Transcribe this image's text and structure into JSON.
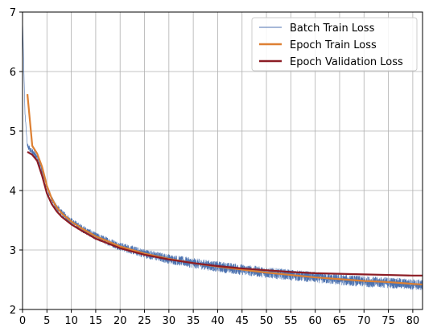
{
  "chart_data": {
    "type": "line",
    "title": "",
    "xlabel": "",
    "ylabel": "",
    "xlim": [
      0,
      82
    ],
    "ylim": [
      2,
      7
    ],
    "x_ticks": [
      0,
      5,
      10,
      15,
      20,
      25,
      30,
      35,
      40,
      45,
      50,
      55,
      60,
      65,
      70,
      75,
      80
    ],
    "y_ticks": [
      2,
      3,
      4,
      5,
      6,
      7
    ],
    "grid": true,
    "legend_position": "top-right",
    "series": [
      {
        "name": "Batch Train Loss",
        "color": "#4c72b0",
        "style": "noisy-thin",
        "x": [
          0,
          0.5,
          1,
          2,
          3,
          4,
          5,
          6,
          7,
          8,
          10,
          12,
          15,
          20,
          25,
          30,
          35,
          40,
          45,
          50,
          55,
          60,
          65,
          70,
          75,
          80,
          82
        ],
        "values": [
          6.9,
          5.3,
          4.75,
          4.65,
          4.55,
          4.35,
          4.05,
          3.85,
          3.72,
          3.62,
          3.48,
          3.37,
          3.23,
          3.06,
          2.94,
          2.85,
          2.78,
          2.72,
          2.67,
          2.62,
          2.58,
          2.54,
          2.5,
          2.47,
          2.45,
          2.42,
          2.41
        ]
      },
      {
        "name": "Epoch Train Loss",
        "color": "#dd8033",
        "style": "solid",
        "x": [
          1,
          2,
          3,
          4,
          5,
          6,
          7,
          8,
          10,
          12,
          15,
          20,
          25,
          30,
          35,
          40,
          45,
          50,
          55,
          60,
          65,
          70,
          75,
          80,
          82
        ],
        "values": [
          5.62,
          4.75,
          4.62,
          4.4,
          4.08,
          3.86,
          3.72,
          3.62,
          3.48,
          3.37,
          3.23,
          3.06,
          2.94,
          2.85,
          2.78,
          2.72,
          2.67,
          2.62,
          2.58,
          2.54,
          2.51,
          2.48,
          2.46,
          2.43,
          2.42
        ]
      },
      {
        "name": "Epoch Validation Loss",
        "color": "#8c1c24",
        "style": "solid",
        "x": [
          1,
          2,
          3,
          4,
          5,
          6,
          7,
          8,
          10,
          12,
          15,
          20,
          25,
          30,
          35,
          40,
          45,
          50,
          55,
          60,
          65,
          70,
          75,
          80,
          82
        ],
        "values": [
          4.65,
          4.6,
          4.5,
          4.25,
          3.95,
          3.77,
          3.65,
          3.56,
          3.43,
          3.33,
          3.19,
          3.03,
          2.92,
          2.84,
          2.78,
          2.73,
          2.69,
          2.66,
          2.63,
          2.61,
          2.6,
          2.59,
          2.58,
          2.57,
          2.57
        ]
      }
    ]
  }
}
